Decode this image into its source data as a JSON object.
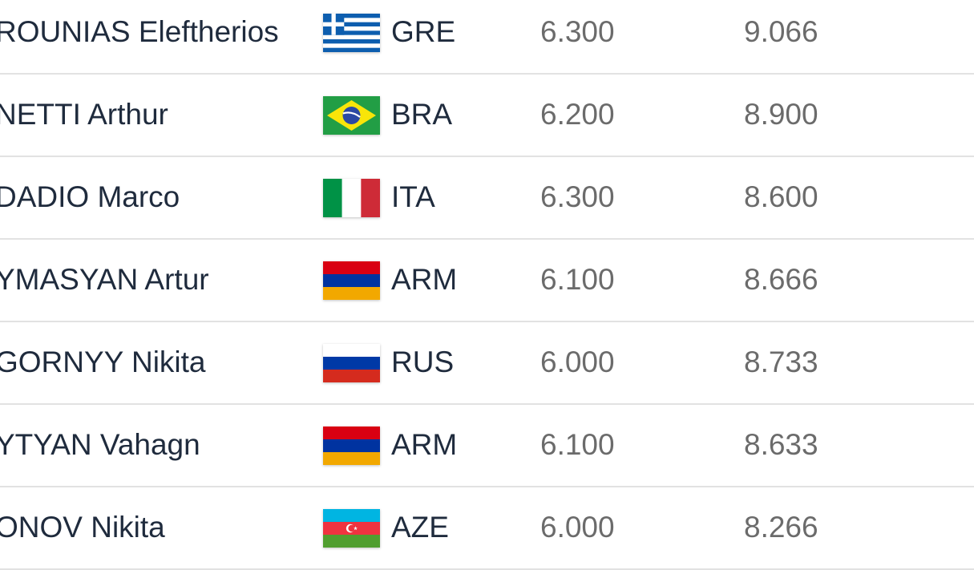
{
  "rows": [
    {
      "name": "ROUNIAS Eleftherios",
      "flag_icon": "greece-flag-icon",
      "noc": "GRE",
      "d_score": "6.300",
      "e_score": "9.066"
    },
    {
      "name": "NETTI Arthur",
      "flag_icon": "brazil-flag-icon",
      "noc": "BRA",
      "d_score": "6.200",
      "e_score": "8.900"
    },
    {
      "name": "DADIO Marco",
      "flag_icon": "italy-flag-icon",
      "noc": "ITA",
      "d_score": "6.300",
      "e_score": "8.600"
    },
    {
      "name": "YMASYAN Artur",
      "flag_icon": "armenia-flag-icon",
      "noc": "ARM",
      "d_score": "6.100",
      "e_score": "8.666"
    },
    {
      "name": "GORNYY Nikita",
      "flag_icon": "russia-flag-icon",
      "noc": "RUS",
      "d_score": "6.000",
      "e_score": "8.733"
    },
    {
      "name": "YTYAN Vahagn",
      "flag_icon": "armenia-flag-icon",
      "noc": "ARM",
      "d_score": "6.100",
      "e_score": "8.633"
    },
    {
      "name": "ONOV Nikita",
      "flag_icon": "azerbaijan-flag-icon",
      "noc": "AZE",
      "d_score": "6.000",
      "e_score": "8.266"
    }
  ],
  "colors": {
    "name_text": "#1f2b3d",
    "score_text": "#6b6b6b",
    "row_divider": "#e2e2e2"
  }
}
